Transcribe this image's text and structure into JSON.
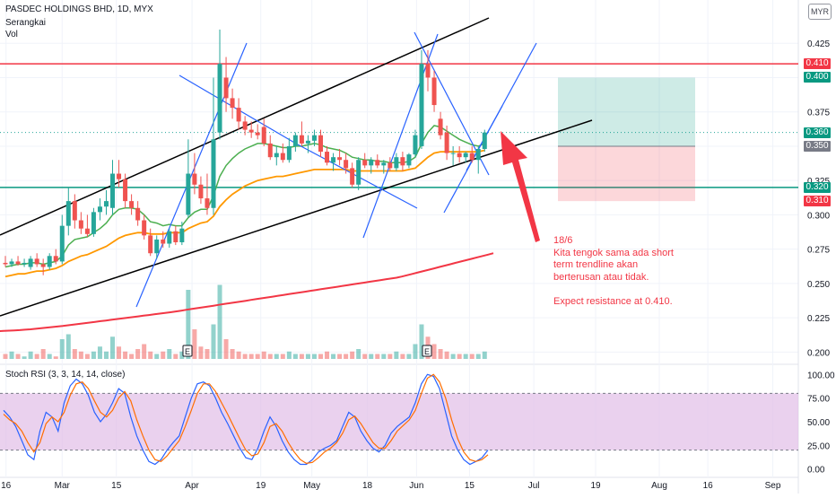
{
  "header": {
    "title": "PASDEC HOLDINGS BHD, 1D, MYX",
    "indicator_1": "Serangkai",
    "indicator_2": "Vol",
    "currency": "MYR"
  },
  "price_tags": [
    {
      "label": "0.410",
      "value": 0.41,
      "color": "#f23645"
    },
    {
      "label": "0.400",
      "value": 0.4,
      "color": "#089981"
    },
    {
      "label": "0.360",
      "value": 0.36,
      "color": "#089981"
    },
    {
      "label": "0.350",
      "value": 0.35,
      "color": "#787b86"
    },
    {
      "label": "0.320",
      "value": 0.32,
      "color": "#089981"
    },
    {
      "label": "0.310",
      "value": 0.31,
      "color": "#f23645"
    }
  ],
  "annotation": {
    "lines": [
      "18/6",
      "Kita tengok sama ada short",
      "term trendline akan",
      "berterusan atau tidak.",
      "",
      "Expect resistance at 0.410."
    ],
    "color": "#f23645"
  },
  "earnings_markers": [
    {
      "label": "E",
      "date": "Apr"
    },
    {
      "label": "E",
      "date": "Jun"
    }
  ],
  "stoch": {
    "title": "Stoch RSI (3, 3, 14, 14, close)"
  },
  "chart_data": [
    {
      "type": "candlestick",
      "title": "PASDEC HOLDINGS BHD, 1D, MYX",
      "x_tick_labels": [
        "16",
        "Mar",
        "15",
        "Apr",
        "19",
        "May",
        "18",
        "Jun",
        "15",
        "Jul",
        "19",
        "Aug",
        "16",
        "Sep"
      ],
      "y_tick_labels": [
        "0.200",
        "0.225",
        "0.250",
        "0.275",
        "0.300",
        "0.325",
        "0.350",
        "0.375",
        "0.400",
        "0.425"
      ],
      "ylim": [
        0.195,
        0.45
      ],
      "candles": [
        {
          "o": 0.265,
          "h": 0.27,
          "l": 0.262,
          "c": 0.264
        },
        {
          "o": 0.264,
          "h": 0.268,
          "l": 0.262,
          "c": 0.266
        },
        {
          "o": 0.266,
          "h": 0.27,
          "l": 0.263,
          "c": 0.264
        },
        {
          "o": 0.264,
          "h": 0.268,
          "l": 0.262,
          "c": 0.265
        },
        {
          "o": 0.262,
          "h": 0.27,
          "l": 0.26,
          "c": 0.268
        },
        {
          "o": 0.268,
          "h": 0.272,
          "l": 0.262,
          "c": 0.264
        },
        {
          "o": 0.264,
          "h": 0.268,
          "l": 0.256,
          "c": 0.262
        },
        {
          "o": 0.262,
          "h": 0.272,
          "l": 0.26,
          "c": 0.27
        },
        {
          "o": 0.27,
          "h": 0.275,
          "l": 0.264,
          "c": 0.266
        },
        {
          "o": 0.266,
          "h": 0.3,
          "l": 0.264,
          "c": 0.292
        },
        {
          "o": 0.292,
          "h": 0.32,
          "l": 0.285,
          "c": 0.31
        },
        {
          "o": 0.31,
          "h": 0.315,
          "l": 0.29,
          "c": 0.296
        },
        {
          "o": 0.296,
          "h": 0.302,
          "l": 0.286,
          "c": 0.29
        },
        {
          "o": 0.29,
          "h": 0.3,
          "l": 0.284,
          "c": 0.286
        },
        {
          "o": 0.286,
          "h": 0.305,
          "l": 0.284,
          "c": 0.302
        },
        {
          "o": 0.302,
          "h": 0.312,
          "l": 0.296,
          "c": 0.306
        },
        {
          "o": 0.306,
          "h": 0.318,
          "l": 0.3,
          "c": 0.31
        },
        {
          "o": 0.305,
          "h": 0.34,
          "l": 0.3,
          "c": 0.33
        },
        {
          "o": 0.33,
          "h": 0.34,
          "l": 0.32,
          "c": 0.326
        },
        {
          "o": 0.326,
          "h": 0.33,
          "l": 0.305,
          "c": 0.31
        },
        {
          "o": 0.31,
          "h": 0.315,
          "l": 0.3,
          "c": 0.305
        },
        {
          "o": 0.305,
          "h": 0.31,
          "l": 0.292,
          "c": 0.296
        },
        {
          "o": 0.296,
          "h": 0.3,
          "l": 0.282,
          "c": 0.285
        },
        {
          "o": 0.285,
          "h": 0.29,
          "l": 0.27,
          "c": 0.272
        },
        {
          "o": 0.272,
          "h": 0.285,
          "l": 0.268,
          "c": 0.282
        },
        {
          "o": 0.282,
          "h": 0.288,
          "l": 0.276,
          "c": 0.279
        },
        {
          "o": 0.279,
          "h": 0.29,
          "l": 0.276,
          "c": 0.288
        },
        {
          "o": 0.288,
          "h": 0.292,
          "l": 0.278,
          "c": 0.28
        },
        {
          "o": 0.28,
          "h": 0.295,
          "l": 0.278,
          "c": 0.29
        },
        {
          "o": 0.3,
          "h": 0.355,
          "l": 0.298,
          "c": 0.33
        },
        {
          "o": 0.33,
          "h": 0.345,
          "l": 0.315,
          "c": 0.322
        },
        {
          "o": 0.322,
          "h": 0.328,
          "l": 0.308,
          "c": 0.312
        },
        {
          "o": 0.312,
          "h": 0.33,
          "l": 0.3,
          "c": 0.305
        },
        {
          "o": 0.305,
          "h": 0.4,
          "l": 0.3,
          "c": 0.355
        },
        {
          "o": 0.36,
          "h": 0.435,
          "l": 0.355,
          "c": 0.41
        },
        {
          "o": 0.4,
          "h": 0.415,
          "l": 0.375,
          "c": 0.385
        },
        {
          "o": 0.385,
          "h": 0.392,
          "l": 0.37,
          "c": 0.378
        },
        {
          "o": 0.378,
          "h": 0.385,
          "l": 0.362,
          "c": 0.368
        },
        {
          "o": 0.368,
          "h": 0.372,
          "l": 0.358,
          "c": 0.362
        },
        {
          "o": 0.362,
          "h": 0.368,
          "l": 0.356,
          "c": 0.36
        },
        {
          "o": 0.36,
          "h": 0.366,
          "l": 0.355,
          "c": 0.358
        },
        {
          "o": 0.364,
          "h": 0.37,
          "l": 0.35,
          "c": 0.352
        },
        {
          "o": 0.352,
          "h": 0.358,
          "l": 0.34,
          "c": 0.342
        },
        {
          "o": 0.342,
          "h": 0.35,
          "l": 0.336,
          "c": 0.345
        },
        {
          "o": 0.345,
          "h": 0.352,
          "l": 0.338,
          "c": 0.34
        },
        {
          "o": 0.34,
          "h": 0.356,
          "l": 0.338,
          "c": 0.35
        },
        {
          "o": 0.35,
          "h": 0.36,
          "l": 0.346,
          "c": 0.358
        },
        {
          "o": 0.358,
          "h": 0.368,
          "l": 0.35,
          "c": 0.352
        },
        {
          "o": 0.352,
          "h": 0.358,
          "l": 0.345,
          "c": 0.354
        },
        {
          "o": 0.354,
          "h": 0.362,
          "l": 0.35,
          "c": 0.358
        },
        {
          "o": 0.358,
          "h": 0.362,
          "l": 0.342,
          "c": 0.346
        },
        {
          "o": 0.346,
          "h": 0.35,
          "l": 0.336,
          "c": 0.338
        },
        {
          "o": 0.338,
          "h": 0.345,
          "l": 0.332,
          "c": 0.342
        },
        {
          "o": 0.342,
          "h": 0.348,
          "l": 0.336,
          "c": 0.34
        },
        {
          "o": 0.34,
          "h": 0.345,
          "l": 0.33,
          "c": 0.334
        },
        {
          "o": 0.334,
          "h": 0.338,
          "l": 0.32,
          "c": 0.322
        },
        {
          "o": 0.322,
          "h": 0.342,
          "l": 0.318,
          "c": 0.34
        },
        {
          "o": 0.34,
          "h": 0.345,
          "l": 0.334,
          "c": 0.336
        },
        {
          "o": 0.336,
          "h": 0.342,
          "l": 0.33,
          "c": 0.34
        },
        {
          "o": 0.34,
          "h": 0.344,
          "l": 0.334,
          "c": 0.336
        },
        {
          "o": 0.336,
          "h": 0.34,
          "l": 0.33,
          "c": 0.338
        },
        {
          "o": 0.338,
          "h": 0.342,
          "l": 0.332,
          "c": 0.334
        },
        {
          "o": 0.334,
          "h": 0.345,
          "l": 0.332,
          "c": 0.342
        },
        {
          "o": 0.342,
          "h": 0.346,
          "l": 0.332,
          "c": 0.336
        },
        {
          "o": 0.336,
          "h": 0.345,
          "l": 0.334,
          "c": 0.344
        },
        {
          "o": 0.344,
          "h": 0.362,
          "l": 0.342,
          "c": 0.358
        },
        {
          "o": 0.35,
          "h": 0.42,
          "l": 0.348,
          "c": 0.41
        },
        {
          "o": 0.41,
          "h": 0.42,
          "l": 0.39,
          "c": 0.4
        },
        {
          "o": 0.4,
          "h": 0.405,
          "l": 0.375,
          "c": 0.38
        },
        {
          "o": 0.37,
          "h": 0.375,
          "l": 0.355,
          "c": 0.358
        },
        {
          "o": 0.36,
          "h": 0.365,
          "l": 0.34,
          "c": 0.345
        },
        {
          "o": 0.345,
          "h": 0.35,
          "l": 0.336,
          "c": 0.345
        },
        {
          "o": 0.345,
          "h": 0.35,
          "l": 0.338,
          "c": 0.342
        },
        {
          "o": 0.342,
          "h": 0.346,
          "l": 0.338,
          "c": 0.345
        },
        {
          "o": 0.345,
          "h": 0.35,
          "l": 0.338,
          "c": 0.34
        },
        {
          "o": 0.34,
          "h": 0.35,
          "l": 0.33,
          "c": 0.348
        },
        {
          "o": 0.348,
          "h": 0.362,
          "l": 0.346,
          "c": 0.36
        }
      ],
      "ema_fast_green": [
        0.262,
        0.263,
        0.264,
        0.264,
        0.265,
        0.265,
        0.264,
        0.265,
        0.266,
        0.27,
        0.278,
        0.282,
        0.283,
        0.284,
        0.287,
        0.29,
        0.294,
        0.3,
        0.304,
        0.305,
        0.305,
        0.304,
        0.3,
        0.295,
        0.294,
        0.292,
        0.293,
        0.292,
        0.292,
        0.298,
        0.302,
        0.304,
        0.304,
        0.314,
        0.328,
        0.336,
        0.341,
        0.345,
        0.348,
        0.35,
        0.352,
        0.352,
        0.351,
        0.35,
        0.349,
        0.349,
        0.35,
        0.35,
        0.351,
        0.352,
        0.351,
        0.349,
        0.348,
        0.347,
        0.345,
        0.342,
        0.341,
        0.34,
        0.34,
        0.339,
        0.339,
        0.338,
        0.338,
        0.338,
        0.339,
        0.342,
        0.352,
        0.36,
        0.365,
        0.364,
        0.361,
        0.358,
        0.355,
        0.353,
        0.351,
        0.35,
        0.352
      ],
      "ema_mid_orange": [
        0.255,
        0.256,
        0.257,
        0.257,
        0.258,
        0.259,
        0.259,
        0.26,
        0.261,
        0.263,
        0.266,
        0.268,
        0.27,
        0.271,
        0.273,
        0.275,
        0.277,
        0.28,
        0.283,
        0.285,
        0.286,
        0.287,
        0.287,
        0.286,
        0.286,
        0.286,
        0.287,
        0.287,
        0.287,
        0.29,
        0.292,
        0.294,
        0.295,
        0.299,
        0.306,
        0.311,
        0.315,
        0.318,
        0.321,
        0.323,
        0.325,
        0.326,
        0.327,
        0.328,
        0.328,
        0.329,
        0.33,
        0.331,
        0.332,
        0.333,
        0.333,
        0.333,
        0.333,
        0.333,
        0.333,
        0.332,
        0.332,
        0.332,
        0.332,
        0.332,
        0.332,
        0.332,
        0.332,
        0.332,
        0.333,
        0.334,
        0.338,
        0.342,
        0.345,
        0.346,
        0.346,
        0.346,
        0.346,
        0.346,
        0.346,
        0.346,
        0.347
      ],
      "sma_long_red": [
        0.215,
        0.2152,
        0.2154,
        0.2156,
        0.2158,
        0.216,
        0.2163,
        0.2166,
        0.217,
        0.2174,
        0.2178,
        0.2182,
        0.2186,
        0.219,
        0.2195,
        0.22,
        0.2205,
        0.221,
        0.2215,
        0.222,
        0.2225,
        0.223,
        0.2235,
        0.224,
        0.2245,
        0.225,
        0.2255,
        0.226,
        0.2265,
        0.227,
        0.2275,
        0.228,
        0.2285,
        0.229,
        0.2296,
        0.2302,
        0.2308,
        0.2314,
        0.232,
        0.2326,
        0.2332,
        0.2338,
        0.2344,
        0.235,
        0.2356,
        0.2362,
        0.2368,
        0.2374,
        0.238,
        0.2386,
        0.2392,
        0.2398,
        0.2404,
        0.241,
        0.2416,
        0.2422,
        0.2428,
        0.2434,
        0.244,
        0.2446,
        0.2452,
        0.2458,
        0.2464,
        0.247,
        0.2476,
        0.2482,
        0.2488,
        0.2494,
        0.25,
        0.2506,
        0.2512,
        0.2518,
        0.2524,
        0.253,
        0.2536,
        0.2542,
        0.255,
        0.256,
        0.257,
        0.258,
        0.259,
        0.26,
        0.261,
        0.262,
        0.263,
        0.264,
        0.265,
        0.266,
        0.267,
        0.268,
        0.269,
        0.27,
        0.271,
        0.272
      ],
      "volume": [
        2,
        3,
        2,
        1,
        3,
        2,
        4,
        2,
        1,
        8,
        10,
        4,
        3,
        2,
        3,
        5,
        3,
        9,
        5,
        3,
        2,
        4,
        6,
        3,
        2,
        3,
        4,
        2,
        3,
        28,
        12,
        5,
        4,
        14,
        30,
        8,
        4,
        3,
        2,
        2,
        2,
        3,
        2,
        2,
        2,
        3,
        2,
        2,
        2,
        2,
        2,
        3,
        2,
        2,
        2,
        3,
        4,
        2,
        2,
        2,
        2,
        2,
        3,
        2,
        2,
        6,
        14,
        9,
        6,
        4,
        3,
        2,
        2,
        2,
        2,
        2,
        3
      ],
      "volume_ylim": [
        0,
        40
      ],
      "horizontal_lines": [
        {
          "value": 0.41,
          "color": "#f23645"
        },
        {
          "value": 0.32,
          "color": "#089981"
        }
      ],
      "position_box": {
        "entry": 0.35,
        "target": 0.4,
        "stop": 0.31
      }
    },
    {
      "type": "line",
      "title": "Stoch RSI (3, 3, 14, 14, close)",
      "y_tick_labels": [
        "0.00",
        "25.00",
        "50.00",
        "75.00",
        "100.00"
      ],
      "ylim": [
        -5,
        105
      ],
      "band": [
        20,
        80
      ],
      "series": [
        {
          "color": "#2962ff",
          "values": [
            62,
            55,
            45,
            30,
            15,
            10,
            40,
            60,
            55,
            40,
            70,
            88,
            95,
            90,
            78,
            60,
            50,
            58,
            70,
            85,
            80,
            55,
            35,
            20,
            8,
            5,
            10,
            20,
            28,
            35,
            55,
            75,
            90,
            92,
            88,
            75,
            60,
            48,
            35,
            22,
            12,
            10,
            22,
            40,
            55,
            45,
            30,
            18,
            10,
            5,
            5,
            10,
            18,
            22,
            25,
            30,
            45,
            60,
            55,
            40,
            30,
            22,
            18,
            25,
            38,
            45,
            50,
            55,
            70,
            90,
            100,
            98,
            85,
            60,
            35,
            20,
            10,
            5,
            8,
            12,
            20
          ]
        },
        {
          "color": "#ff6d00",
          "values": [
            58,
            52,
            48,
            40,
            28,
            18,
            28,
            48,
            55,
            50,
            60,
            78,
            90,
            92,
            85,
            72,
            60,
            55,
            62,
            75,
            82,
            72,
            52,
            35,
            20,
            10,
            8,
            14,
            22,
            30,
            45,
            62,
            80,
            90,
            90,
            82,
            70,
            58,
            45,
            32,
            20,
            14,
            16,
            28,
            45,
            48,
            40,
            28,
            18,
            10,
            6,
            7,
            12,
            18,
            22,
            28,
            38,
            52,
            56,
            48,
            38,
            28,
            22,
            22,
            30,
            40,
            46,
            52,
            62,
            80,
            96,
            100,
            92,
            75,
            52,
            32,
            18,
            10,
            8,
            10,
            15
          ]
        }
      ]
    }
  ]
}
